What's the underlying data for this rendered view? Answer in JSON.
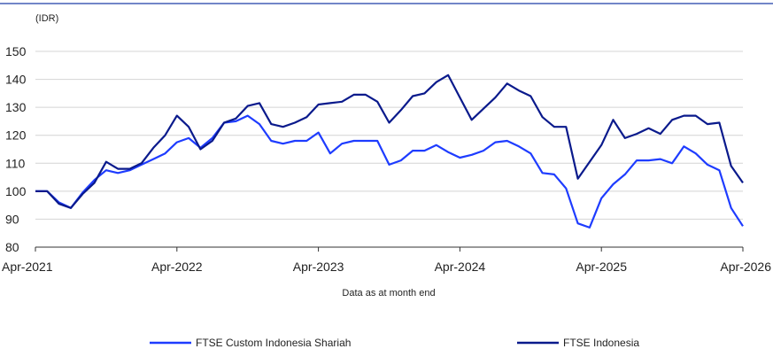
{
  "chart_data": {
    "type": "line",
    "ylabel": "(IDR)",
    "xlabel": "Data as at month end",
    "ylim": [
      80,
      150
    ],
    "yticks": [
      80,
      90,
      100,
      110,
      120,
      130,
      140,
      150
    ],
    "xticks": [
      "Apr-2021",
      "Apr-2022",
      "Apr-2023",
      "Apr-2024",
      "Apr-2025",
      "Apr-2026"
    ],
    "grid": "horizontal",
    "legend_position": "bottom",
    "colors": {
      "top_rule": "#1f3fa8",
      "grid": "#d4d4d4",
      "axis": "#333333"
    },
    "series": [
      {
        "name": "FTSE Custom Indonesia Shariah",
        "color": "#1e3cff",
        "values": [
          100,
          100,
          96,
          94,
          99.5,
          104,
          107.5,
          106.5,
          107.5,
          109.5,
          111.5,
          113.5,
          117.5,
          119,
          115.5,
          119,
          124.5,
          125,
          127,
          124,
          118,
          117,
          118,
          118,
          121,
          113.5,
          117,
          118,
          118,
          118,
          109.5,
          111,
          114.5,
          114.5,
          116.5,
          114,
          112,
          113,
          114.5,
          117.5,
          118,
          116,
          113.5,
          106.5,
          106,
          101,
          88.5,
          87,
          97.5,
          102.5,
          106,
          111,
          111,
          111.5,
          110,
          116,
          113.5,
          109.5,
          107.5,
          94,
          87.5
        ]
      },
      {
        "name": "FTSE Indonesia",
        "color": "#0a1a8c",
        "values": [
          100,
          100,
          95.5,
          94,
          99,
          103,
          110.5,
          108,
          108,
          110,
          115.5,
          120,
          127,
          123,
          115,
          118,
          124.5,
          126,
          130.5,
          131.5,
          124,
          123,
          124.5,
          126.5,
          131,
          131.5,
          132,
          134.5,
          134.5,
          132,
          124.5,
          129,
          134,
          135,
          139,
          141.5,
          133.5,
          125.5,
          129.5,
          133.5,
          138.5,
          136,
          134,
          126.5,
          123,
          123,
          104.5,
          110.5,
          116.5,
          125.5,
          119,
          120.5,
          122.5,
          120.5,
          125.5,
          127,
          127,
          124,
          124.5,
          109,
          103
        ]
      }
    ]
  }
}
